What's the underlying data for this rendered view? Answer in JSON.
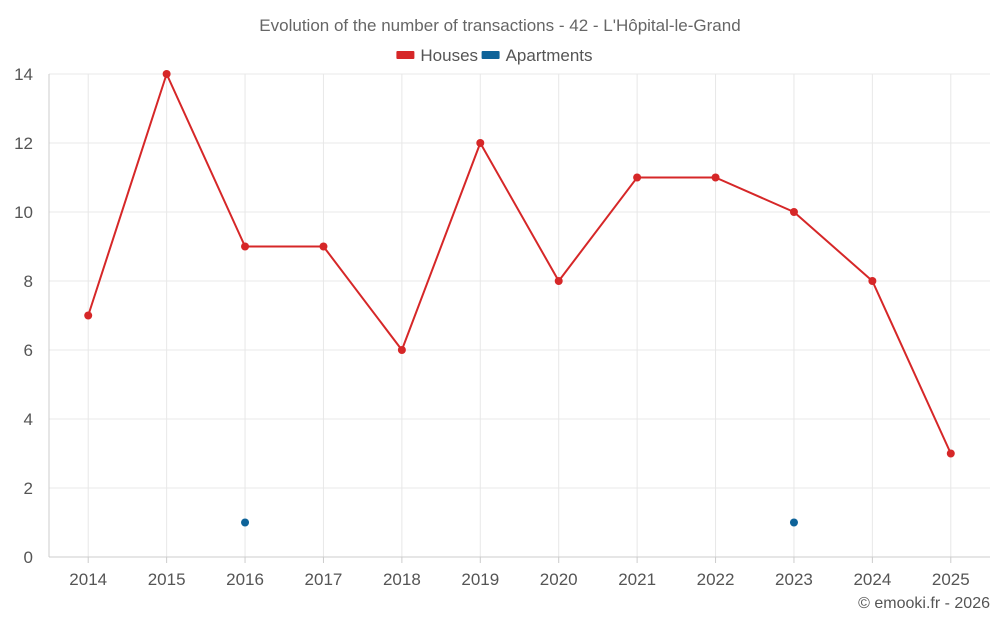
{
  "chart_data": {
    "type": "line",
    "title": "Evolution of the number of transactions - 42 - L'Hôpital-le-Grand",
    "categories": [
      "2014",
      "2015",
      "2016",
      "2017",
      "2018",
      "2019",
      "2020",
      "2021",
      "2022",
      "2023",
      "2024",
      "2025"
    ],
    "ylim": [
      0,
      14
    ],
    "yticks": [
      0,
      2,
      4,
      6,
      8,
      10,
      12,
      14
    ],
    "grid": true,
    "legend_position": "top-center",
    "series": [
      {
        "name": "Houses",
        "color": "#d62728",
        "line": true,
        "values": [
          7,
          14,
          9,
          9,
          6,
          12,
          8,
          11,
          11,
          10,
          8,
          3
        ]
      },
      {
        "name": "Apartments",
        "color": "#0e6399",
        "line": false,
        "values": [
          null,
          null,
          1,
          null,
          null,
          null,
          null,
          null,
          null,
          1,
          null,
          null
        ]
      }
    ]
  },
  "credit": "© emooki.fr - 2026"
}
